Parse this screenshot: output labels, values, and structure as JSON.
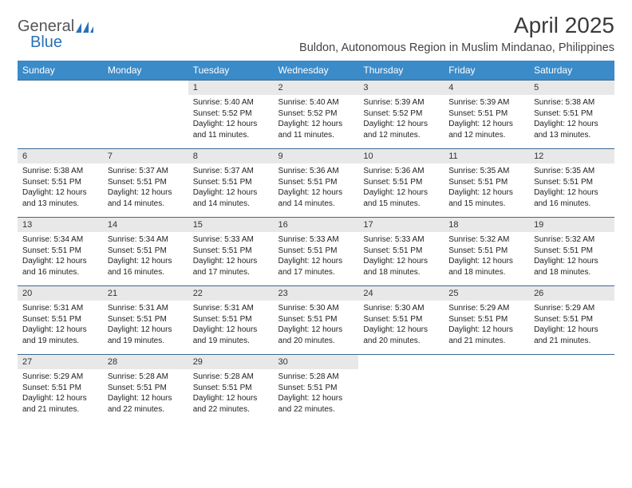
{
  "brand": {
    "part1": "General",
    "part2": "Blue"
  },
  "title": "April 2025",
  "location": "Buldon, Autonomous Region in Muslim Mindanao, Philippines",
  "colors": {
    "header_bg": "#3b8bc9",
    "header_text": "#ffffff",
    "daynum_bg": "#e8e8e8",
    "cell_border": "#3b6a95",
    "text": "#222222",
    "brand_gray": "#555555",
    "brand_blue": "#2a71b8",
    "page_bg": "#ffffff"
  },
  "typography": {
    "title_fontsize": 28,
    "location_fontsize": 14.5,
    "weekday_fontsize": 12,
    "daynum_fontsize": 11,
    "body_fontsize": 10
  },
  "layout": {
    "columns": 7,
    "rows": 5,
    "first_weekday_index": 2,
    "days_in_month": 30
  },
  "weekdays": [
    "Sunday",
    "Monday",
    "Tuesday",
    "Wednesday",
    "Thursday",
    "Friday",
    "Saturday"
  ],
  "days": {
    "1": {
      "sunrise": "5:40 AM",
      "sunset": "5:52 PM",
      "daylight": "12 hours and 11 minutes."
    },
    "2": {
      "sunrise": "5:40 AM",
      "sunset": "5:52 PM",
      "daylight": "12 hours and 11 minutes."
    },
    "3": {
      "sunrise": "5:39 AM",
      "sunset": "5:52 PM",
      "daylight": "12 hours and 12 minutes."
    },
    "4": {
      "sunrise": "5:39 AM",
      "sunset": "5:51 PM",
      "daylight": "12 hours and 12 minutes."
    },
    "5": {
      "sunrise": "5:38 AM",
      "sunset": "5:51 PM",
      "daylight": "12 hours and 13 minutes."
    },
    "6": {
      "sunrise": "5:38 AM",
      "sunset": "5:51 PM",
      "daylight": "12 hours and 13 minutes."
    },
    "7": {
      "sunrise": "5:37 AM",
      "sunset": "5:51 PM",
      "daylight": "12 hours and 14 minutes."
    },
    "8": {
      "sunrise": "5:37 AM",
      "sunset": "5:51 PM",
      "daylight": "12 hours and 14 minutes."
    },
    "9": {
      "sunrise": "5:36 AM",
      "sunset": "5:51 PM",
      "daylight": "12 hours and 14 minutes."
    },
    "10": {
      "sunrise": "5:36 AM",
      "sunset": "5:51 PM",
      "daylight": "12 hours and 15 minutes."
    },
    "11": {
      "sunrise": "5:35 AM",
      "sunset": "5:51 PM",
      "daylight": "12 hours and 15 minutes."
    },
    "12": {
      "sunrise": "5:35 AM",
      "sunset": "5:51 PM",
      "daylight": "12 hours and 16 minutes."
    },
    "13": {
      "sunrise": "5:34 AM",
      "sunset": "5:51 PM",
      "daylight": "12 hours and 16 minutes."
    },
    "14": {
      "sunrise": "5:34 AM",
      "sunset": "5:51 PM",
      "daylight": "12 hours and 16 minutes."
    },
    "15": {
      "sunrise": "5:33 AM",
      "sunset": "5:51 PM",
      "daylight": "12 hours and 17 minutes."
    },
    "16": {
      "sunrise": "5:33 AM",
      "sunset": "5:51 PM",
      "daylight": "12 hours and 17 minutes."
    },
    "17": {
      "sunrise": "5:33 AM",
      "sunset": "5:51 PM",
      "daylight": "12 hours and 18 minutes."
    },
    "18": {
      "sunrise": "5:32 AM",
      "sunset": "5:51 PM",
      "daylight": "12 hours and 18 minutes."
    },
    "19": {
      "sunrise": "5:32 AM",
      "sunset": "5:51 PM",
      "daylight": "12 hours and 18 minutes."
    },
    "20": {
      "sunrise": "5:31 AM",
      "sunset": "5:51 PM",
      "daylight": "12 hours and 19 minutes."
    },
    "21": {
      "sunrise": "5:31 AM",
      "sunset": "5:51 PM",
      "daylight": "12 hours and 19 minutes."
    },
    "22": {
      "sunrise": "5:31 AM",
      "sunset": "5:51 PM",
      "daylight": "12 hours and 19 minutes."
    },
    "23": {
      "sunrise": "5:30 AM",
      "sunset": "5:51 PM",
      "daylight": "12 hours and 20 minutes."
    },
    "24": {
      "sunrise": "5:30 AM",
      "sunset": "5:51 PM",
      "daylight": "12 hours and 20 minutes."
    },
    "25": {
      "sunrise": "5:29 AM",
      "sunset": "5:51 PM",
      "daylight": "12 hours and 21 minutes."
    },
    "26": {
      "sunrise": "5:29 AM",
      "sunset": "5:51 PM",
      "daylight": "12 hours and 21 minutes."
    },
    "27": {
      "sunrise": "5:29 AM",
      "sunset": "5:51 PM",
      "daylight": "12 hours and 21 minutes."
    },
    "28": {
      "sunrise": "5:28 AM",
      "sunset": "5:51 PM",
      "daylight": "12 hours and 22 minutes."
    },
    "29": {
      "sunrise": "5:28 AM",
      "sunset": "5:51 PM",
      "daylight": "12 hours and 22 minutes."
    },
    "30": {
      "sunrise": "5:28 AM",
      "sunset": "5:51 PM",
      "daylight": "12 hours and 22 minutes."
    }
  },
  "labels": {
    "sunrise": "Sunrise:",
    "sunset": "Sunset:",
    "daylight": "Daylight:"
  }
}
